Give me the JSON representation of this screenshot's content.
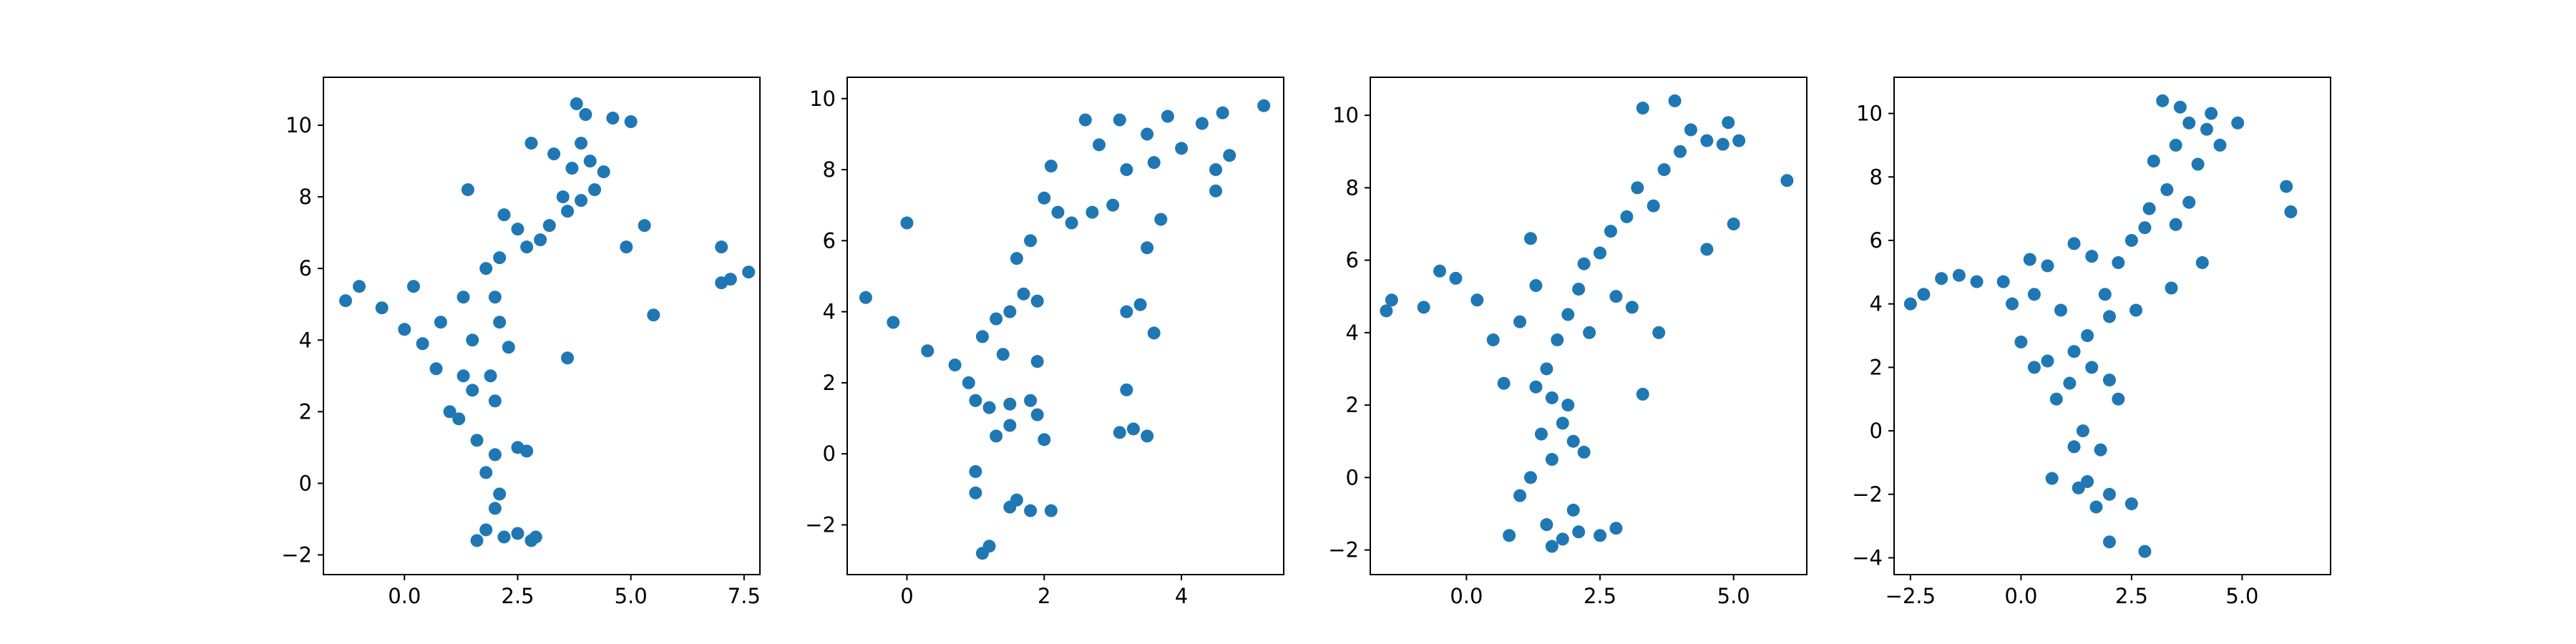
{
  "chart_data": [
    {
      "type": "scatter",
      "color": "#1f77b4",
      "x": [
        3.5,
        3.7,
        3.9,
        4.0,
        3.8,
        4.2,
        3.6,
        4.1,
        3.9,
        4.4,
        5.0,
        4.6,
        3.3,
        3.2,
        3.0,
        2.7,
        2.5,
        2.2,
        2.8,
        2.1,
        1.8,
        2.0,
        2.1,
        2.3,
        1.9,
        2.0,
        1.5,
        1.2,
        1.0,
        1.6,
        2.0,
        2.5,
        2.7,
        1.8,
        2.1,
        2.0,
        1.8,
        2.2,
        2.5,
        2.8,
        1.6,
        2.9,
        -1.3,
        -1.0,
        -0.5,
        0.0,
        0.4,
        0.7,
        0.8,
        0.2,
        1.4,
        1.3,
        3.6,
        5.5,
        5.3,
        4.9,
        7.0,
        7.2,
        7.6,
        7.0,
        1.5,
        1.3
      ],
      "y": [
        8.0,
        8.8,
        9.5,
        10.3,
        10.6,
        8.2,
        7.6,
        9.0,
        7.9,
        8.7,
        10.1,
        10.2,
        9.2,
        7.2,
        6.8,
        6.6,
        7.1,
        7.5,
        9.5,
        6.3,
        6.0,
        5.2,
        4.5,
        3.8,
        3.0,
        2.3,
        2.6,
        1.8,
        2.0,
        1.2,
        0.8,
        1.0,
        0.9,
        0.3,
        -0.3,
        -0.7,
        -1.3,
        -1.5,
        -1.4,
        -1.6,
        -1.6,
        -1.5,
        5.1,
        5.5,
        4.9,
        4.3,
        3.9,
        3.2,
        4.5,
        5.5,
        8.2,
        5.2,
        3.5,
        4.7,
        7.2,
        6.6,
        6.6,
        5.7,
        5.9,
        5.6,
        4.0,
        3.0
      ],
      "xlim": [
        -1.79,
        7.85
      ],
      "ylim": [
        -2.55,
        11.34
      ],
      "xticks": [
        {
          "value": 0,
          "label": "0.0"
        },
        {
          "value": 2.5,
          "label": "2.5"
        },
        {
          "value": 5,
          "label": "5.0"
        },
        {
          "value": 7.5,
          "label": "7.5"
        }
      ],
      "yticks": [
        {
          "value": -2,
          "label": "−2"
        },
        0,
        2,
        4,
        6,
        8,
        10
      ]
    },
    {
      "type": "scatter",
      "color": "#1f77b4",
      "x": [
        3.5,
        3.8,
        4.0,
        3.6,
        4.3,
        4.5,
        4.6,
        5.2,
        4.7,
        4.5,
        3.1,
        2.6,
        2.8,
        3.2,
        3.0,
        2.7,
        2.4,
        2.2,
        2.0,
        2.1,
        1.8,
        1.6,
        1.7,
        1.9,
        1.5,
        1.3,
        1.4,
        1.9,
        1.1,
        0.9,
        1.0,
        1.2,
        1.5,
        1.8,
        1.9,
        2.0,
        1.5,
        1.3,
        1.0,
        1.0,
        1.5,
        1.8,
        2.1,
        1.6,
        1.1,
        1.2,
        -0.6,
        -0.2,
        0.0,
        0.3,
        0.7,
        3.2,
        3.3,
        3.5,
        3.1,
        3.4,
        3.2,
        3.6,
        3.7,
        3.5
      ],
      "y": [
        9.0,
        9.5,
        8.6,
        8.2,
        9.3,
        8.0,
        9.6,
        9.8,
        8.4,
        7.4,
        9.4,
        9.4,
        8.7,
        8.0,
        7.0,
        6.8,
        6.5,
        6.8,
        7.2,
        8.1,
        6.0,
        5.5,
        4.5,
        4.3,
        4.0,
        3.8,
        2.8,
        2.6,
        3.3,
        2.0,
        1.5,
        1.3,
        1.4,
        1.5,
        1.1,
        0.4,
        0.8,
        0.5,
        -0.5,
        -1.1,
        -1.5,
        -1.6,
        -1.6,
        -1.3,
        -2.8,
        -2.6,
        4.4,
        3.7,
        6.5,
        2.9,
        2.5,
        1.8,
        0.7,
        0.5,
        0.6,
        4.2,
        4.0,
        3.4,
        6.6,
        5.8
      ],
      "xlim": [
        -0.87,
        5.49
      ],
      "ylim": [
        -3.4,
        10.6
      ],
      "xticks": [
        0,
        2,
        4
      ],
      "yticks": [
        {
          "value": -2,
          "label": "−2"
        },
        0,
        2,
        4,
        6,
        8,
        10
      ]
    },
    {
      "type": "scatter",
      "color": "#1f77b4",
      "x": [
        4.0,
        3.7,
        4.2,
        3.9,
        4.5,
        3.3,
        4.8,
        5.1,
        4.9,
        6.0,
        5.0,
        4.5,
        3.5,
        3.2,
        3.0,
        2.7,
        2.5,
        2.2,
        2.8,
        3.1,
        3.6,
        3.3,
        2.1,
        1.9,
        1.7,
        1.5,
        1.6,
        1.3,
        1.8,
        2.0,
        1.4,
        1.6,
        2.2,
        1.2,
        1.0,
        0.8,
        1.5,
        1.8,
        2.1,
        2.5,
        2.8,
        1.6,
        2.0,
        -1.5,
        -1.4,
        -0.8,
        -0.5,
        -0.2,
        0.2,
        0.5,
        0.7,
        1.0,
        1.3,
        1.2,
        2.3,
        1.9
      ],
      "y": [
        9.0,
        8.5,
        9.6,
        10.4,
        9.3,
        10.2,
        9.2,
        9.3,
        9.8,
        8.2,
        7.0,
        6.3,
        7.5,
        8.0,
        7.2,
        6.8,
        6.2,
        5.9,
        5.0,
        4.7,
        4.0,
        2.3,
        5.2,
        4.5,
        3.8,
        3.0,
        2.2,
        2.5,
        1.5,
        1.0,
        1.2,
        0.5,
        0.7,
        0.0,
        -0.5,
        -1.6,
        -1.3,
        -1.7,
        -1.5,
        -1.6,
        -1.4,
        -1.9,
        -0.9,
        4.6,
        4.9,
        4.7,
        5.7,
        5.5,
        4.9,
        3.8,
        2.6,
        4.3,
        5.3,
        6.6,
        4.0,
        2.0
      ],
      "xlim": [
        -1.8,
        6.37
      ],
      "ylim": [
        -2.68,
        11.05
      ],
      "xticks": [
        {
          "value": 0,
          "label": "0.0"
        },
        {
          "value": 2.5,
          "label": "2.5"
        },
        {
          "value": 5,
          "label": "5.0"
        }
      ],
      "yticks": [
        {
          "value": -2,
          "label": "−2"
        },
        0,
        2,
        4,
        6,
        8,
        10
      ]
    },
    {
      "type": "scatter",
      "color": "#1f77b4",
      "x": [
        3.5,
        3.8,
        4.2,
        4.5,
        4.0,
        3.2,
        3.6,
        4.9,
        4.3,
        3.0,
        3.3,
        2.9,
        2.8,
        2.5,
        2.2,
        3.5,
        3.8,
        4.1,
        3.4,
        2.6,
        1.9,
        1.6,
        1.2,
        2.0,
        1.5,
        1.2,
        0.9,
        0.6,
        0.3,
        0.8,
        1.1,
        1.6,
        2.0,
        2.2,
        1.4,
        1.2,
        1.8,
        1.5,
        2.0,
        1.7,
        2.5,
        1.3,
        0.7,
        2.0,
        2.8,
        -2.5,
        -2.2,
        -1.8,
        -1.4,
        -1.0,
        -0.4,
        -0.2,
        0.3,
        0.6,
        0.2,
        0.0,
        6.0,
        6.1
      ],
      "y": [
        9.0,
        9.7,
        9.5,
        9.0,
        8.4,
        10.4,
        10.2,
        9.7,
        10.0,
        8.5,
        7.6,
        7.0,
        6.4,
        6.0,
        5.3,
        6.5,
        7.2,
        5.3,
        4.5,
        3.8,
        4.3,
        5.5,
        5.9,
        3.6,
        3.0,
        2.5,
        3.8,
        2.2,
        2.0,
        1.0,
        1.5,
        2.0,
        1.6,
        1.0,
        0.0,
        -0.5,
        -0.6,
        -1.6,
        -2.0,
        -2.4,
        -2.3,
        -1.8,
        -1.5,
        -3.5,
        -3.8,
        4.0,
        4.3,
        4.8,
        4.9,
        4.7,
        4.7,
        4.0,
        4.3,
        5.2,
        5.4,
        2.8,
        7.7,
        6.9
      ],
      "xlim": [
        -2.87,
        7.0
      ],
      "ylim": [
        -4.53,
        11.14
      ],
      "xticks": [
        {
          "value": -2.5,
          "label": "−2.5"
        },
        {
          "value": 0,
          "label": "0.0"
        },
        {
          "value": 2.5,
          "label": "2.5"
        },
        {
          "value": 5,
          "label": "5.0"
        }
      ],
      "yticks": [
        {
          "value": -4,
          "label": "−4"
        },
        {
          "value": -2,
          "label": "−2"
        },
        0,
        2,
        4,
        6,
        8,
        10
      ]
    }
  ]
}
